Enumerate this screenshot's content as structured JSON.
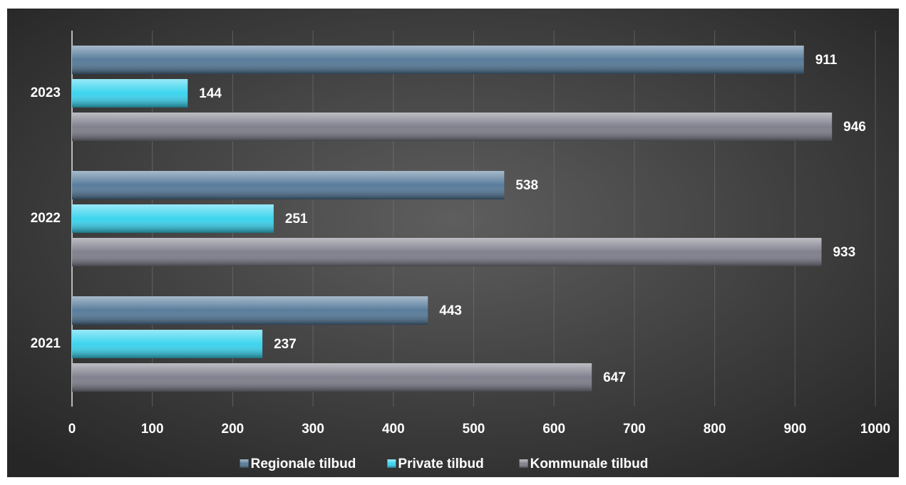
{
  "chart_data": {
    "type": "barh",
    "categories": [
      "2021",
      "2022",
      "2023"
    ],
    "series": [
      {
        "name": "Regionale tilbud",
        "color": "#4f7596",
        "values": [
          443,
          538,
          911
        ]
      },
      {
        "name": "Private tilbud",
        "color": "#33d2ee",
        "values": [
          237,
          251,
          144
        ]
      },
      {
        "name": "Kommunale tilbud",
        "color": "#7a7a88",
        "values": [
          647,
          933,
          946
        ]
      }
    ],
    "xlim": [
      0,
      1000
    ],
    "xticks": [
      0,
      100,
      200,
      300,
      400,
      500,
      600,
      700,
      800,
      900,
      1000
    ],
    "grid": true,
    "legend": "bottom"
  }
}
